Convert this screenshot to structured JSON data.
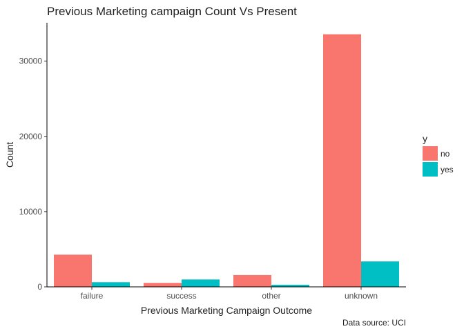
{
  "chart_data": {
    "type": "bar",
    "title": "Previous Marketing campaign Count Vs Present",
    "xlabel": "Previous Marketing Campaign Outcome",
    "ylabel": "Count",
    "caption": "Data source: UCI",
    "categories": [
      "failure",
      "success",
      "other",
      "unknown"
    ],
    "series": [
      {
        "name": "no",
        "color": "#F8766D",
        "values": [
          4280,
          530,
          1570,
          33570
        ]
      },
      {
        "name": "yes",
        "color": "#00BFC4",
        "values": [
          620,
          980,
          280,
          3380
        ]
      }
    ],
    "ylim": [
      0,
      35100
    ],
    "yticks": [
      0,
      10000,
      20000,
      30000
    ],
    "legend": {
      "title": "y",
      "position": "right"
    },
    "grid": false
  }
}
